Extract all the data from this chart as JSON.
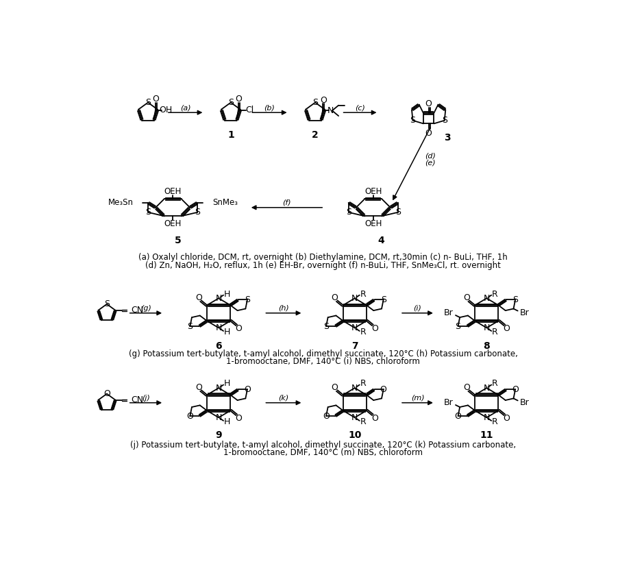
{
  "bg": "#ffffff",
  "caption1": "(a) Oxalyl chloride, DCM, rt, overnight (b) Diethylamine, DCM, rt,30min (c) n- BuLi, THF, 1h",
  "caption2": "(d) Zn, NaOH, H₂O, reflux, 1h (e) EH-Br, overnight (f) n-BuLi, THF, SnMe₃Cl, rt. overnight",
  "caption3": "(g) Potassium tert-butylate, t-amyl alcohol, dimethyl succinate, 120°C (h) Potassium carbonate,",
  "caption3b": "1-bromooctane, DMF, 140°C (i) NBS, chloroform",
  "caption4": "(j) Potassium tert-butylate, t-amyl alcohol, dimethyl succinate, 120°C (k) Potassium carbonate,",
  "caption4b": "1-bromooctane, DMF, 140°C (m) NBS, chloroform"
}
